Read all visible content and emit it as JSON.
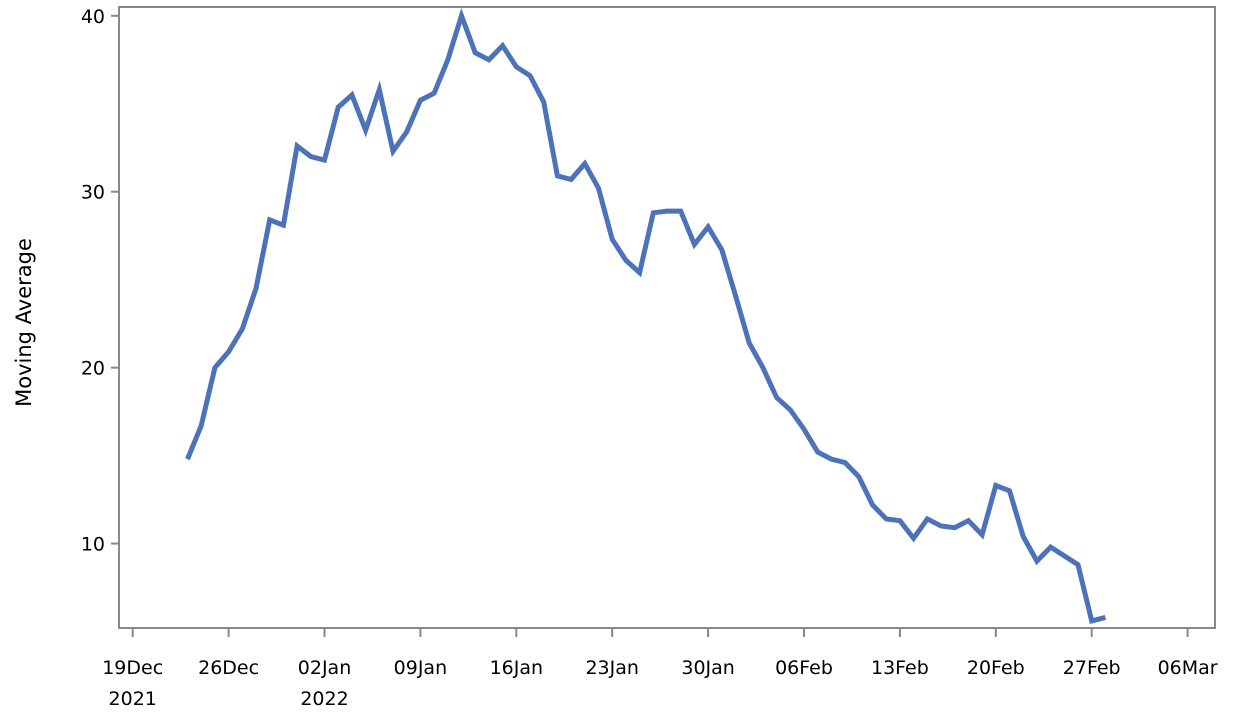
{
  "chart_data": {
    "type": "line",
    "title": "",
    "xlabel": "",
    "ylabel": "Moving Average",
    "grid": false,
    "legend": "none",
    "xlim": [
      "2021-12-18",
      "2022-03-08"
    ],
    "ylim": [
      5.2,
      40.5
    ],
    "x_ticks": [
      {
        "date": "2021-12-19",
        "label": "19Dec",
        "sublabel": "2021"
      },
      {
        "date": "2021-12-26",
        "label": "26Dec",
        "sublabel": ""
      },
      {
        "date": "2022-01-02",
        "label": "02Jan",
        "sublabel": "2022"
      },
      {
        "date": "2022-01-09",
        "label": "09Jan",
        "sublabel": ""
      },
      {
        "date": "2022-01-16",
        "label": "16Jan",
        "sublabel": ""
      },
      {
        "date": "2022-01-23",
        "label": "23Jan",
        "sublabel": ""
      },
      {
        "date": "2022-01-30",
        "label": "30Jan",
        "sublabel": ""
      },
      {
        "date": "2022-02-06",
        "label": "06Feb",
        "sublabel": ""
      },
      {
        "date": "2022-02-13",
        "label": "13Feb",
        "sublabel": ""
      },
      {
        "date": "2022-02-20",
        "label": "20Feb",
        "sublabel": ""
      },
      {
        "date": "2022-02-27",
        "label": "27Feb",
        "sublabel": ""
      },
      {
        "date": "2022-03-06",
        "label": "06Mar",
        "sublabel": ""
      }
    ],
    "y_ticks": [
      10,
      20,
      30,
      40
    ],
    "series_color": "#4c72b9",
    "axis_color": "#888888",
    "series": [
      {
        "x": [
          "2021-12-23",
          "2021-12-24",
          "2021-12-25",
          "2021-12-26",
          "2021-12-27",
          "2021-12-28",
          "2021-12-29",
          "2021-12-30",
          "2021-12-31",
          "2022-01-01",
          "2022-01-02",
          "2022-01-03",
          "2022-01-04",
          "2022-01-05",
          "2022-01-06",
          "2022-01-07",
          "2022-01-08",
          "2022-01-09",
          "2022-01-10",
          "2022-01-11",
          "2022-01-12",
          "2022-01-13",
          "2022-01-14",
          "2022-01-15",
          "2022-01-16",
          "2022-01-17",
          "2022-01-18",
          "2022-01-19",
          "2022-01-20",
          "2022-01-21",
          "2022-01-22",
          "2022-01-23",
          "2022-01-24",
          "2022-01-25",
          "2022-01-26",
          "2022-01-27",
          "2022-01-28",
          "2022-01-29",
          "2022-01-30",
          "2022-01-31",
          "2022-02-01",
          "2022-02-02",
          "2022-02-03",
          "2022-02-04",
          "2022-02-05",
          "2022-02-06",
          "2022-02-07",
          "2022-02-08",
          "2022-02-09",
          "2022-02-10",
          "2022-02-11",
          "2022-02-12",
          "2022-02-13",
          "2022-02-14",
          "2022-02-15",
          "2022-02-16",
          "2022-02-17",
          "2022-02-18",
          "2022-02-19",
          "2022-02-20",
          "2022-02-21",
          "2022-02-22",
          "2022-02-23",
          "2022-02-24",
          "2022-02-25",
          "2022-02-26",
          "2022-02-27",
          "2022-02-28"
        ],
        "y": [
          14.8,
          16.7,
          20.0,
          20.9,
          22.2,
          24.5,
          28.4,
          28.1,
          32.6,
          32.0,
          31.8,
          34.8,
          35.5,
          33.5,
          35.8,
          32.3,
          33.4,
          35.2,
          35.6,
          37.5,
          40.0,
          37.9,
          37.5,
          38.3,
          37.1,
          36.6,
          35.1,
          30.9,
          30.7,
          31.6,
          30.2,
          27.3,
          26.1,
          25.4,
          28.8,
          28.9,
          28.9,
          27.0,
          28.0,
          26.7,
          24.1,
          21.4,
          20.0,
          18.3,
          17.6,
          16.5,
          15.2,
          14.8,
          14.6,
          13.8,
          12.2,
          11.4,
          11.3,
          10.3,
          11.4,
          11.0,
          10.9,
          11.3,
          10.5,
          13.3,
          13.0,
          10.4,
          9.0,
          9.8,
          9.3,
          8.8,
          5.6,
          5.8
        ]
      }
    ]
  }
}
